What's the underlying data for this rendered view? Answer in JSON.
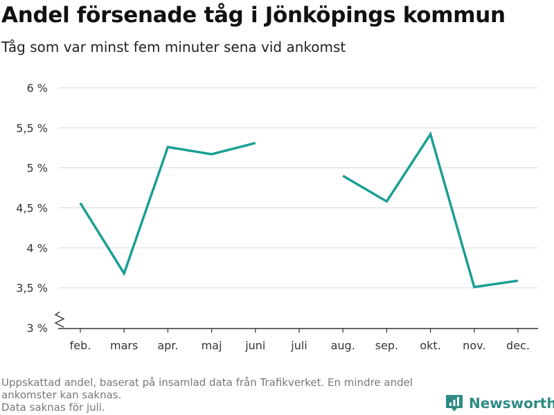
{
  "header": {
    "title": "Andel försenade tåg i Jönköpings kommun",
    "subtitle": "Tåg som var minst fem minuter sena vid ankomst"
  },
  "chart_data": {
    "type": "line",
    "title": "Andel försenade tåg i Jönköpings kommun",
    "subtitle": "Tåg som var minst fem minuter sena vid ankomst",
    "xlabel": "",
    "ylabel": "",
    "categories": [
      "feb.",
      "mars",
      "apr.",
      "maj",
      "juni",
      "juli",
      "aug.",
      "sep.",
      "okt.",
      "nov.",
      "dec."
    ],
    "series": [
      {
        "values": [
          4.56,
          3.68,
          5.26,
          5.17,
          5.31,
          null,
          4.9,
          4.58,
          5.42,
          3.51,
          3.59
        ]
      }
    ],
    "yticks": [
      3,
      3.5,
      4,
      4.5,
      5,
      5.5,
      6
    ],
    "ytick_labels": [
      "3 %",
      "3,5 %",
      "4 %",
      "4,5 %",
      "5 %",
      "5,5 %",
      "6 %"
    ],
    "ylim": [
      3,
      6
    ],
    "y_axis_break": true,
    "grid": true,
    "legend": "none",
    "line_color": "#1a9e94"
  },
  "footer": {
    "note_1": "Uppskattad andel, baserat på insamlad data från Trafikverket. En mindre andel ankomster kan saknas.",
    "note_2": "Data saknas för juli."
  },
  "brand": {
    "name": "Newsworthy",
    "color": "#2e8b84",
    "icon": "bar-chart-logo-icon"
  }
}
